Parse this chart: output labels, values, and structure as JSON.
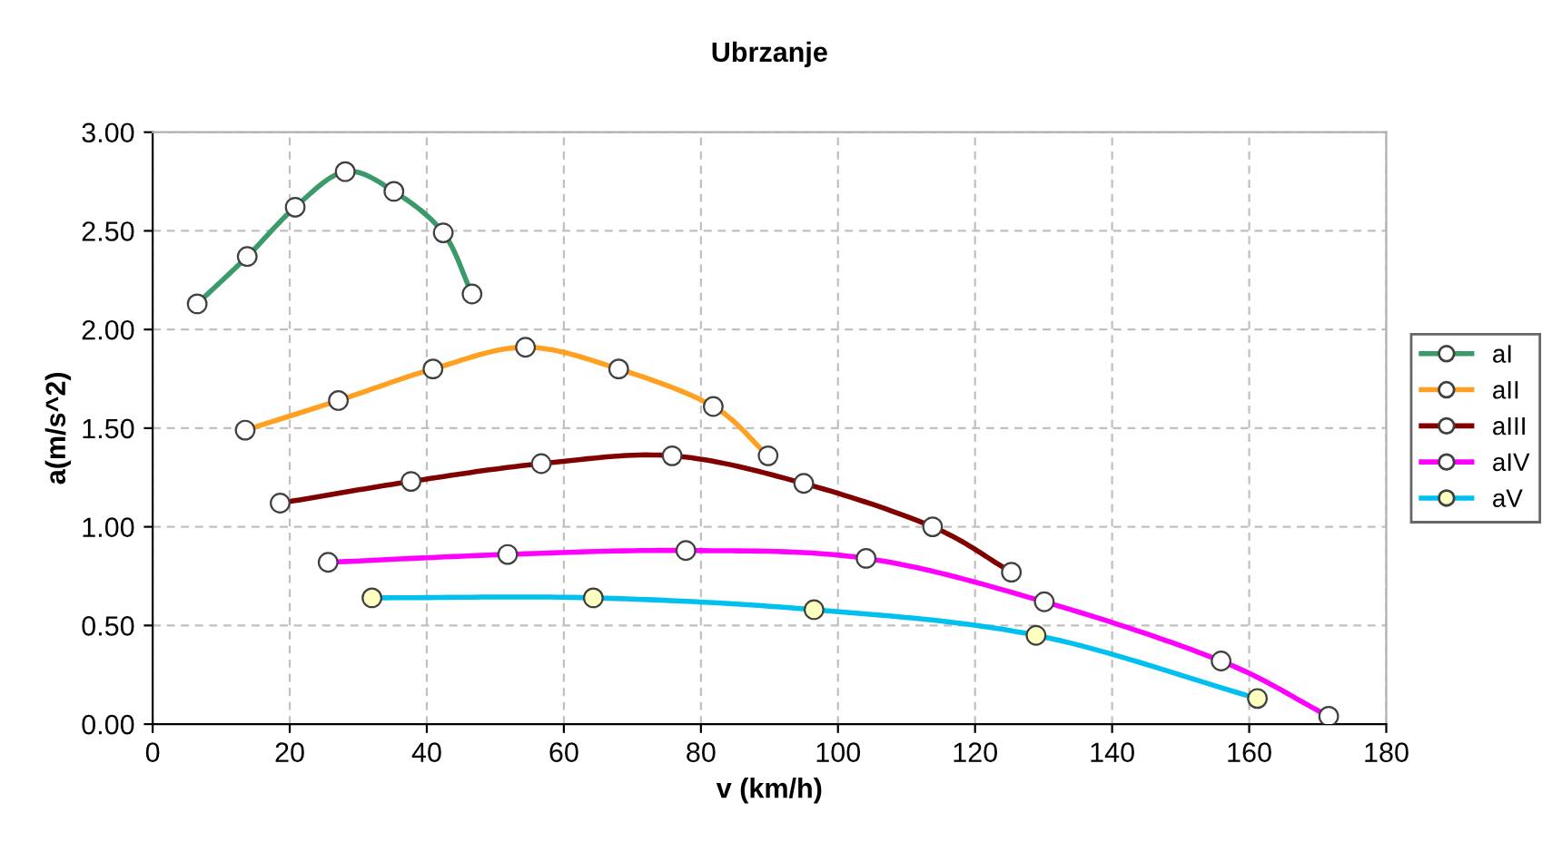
{
  "chart_data": {
    "type": "line",
    "title": "Ubrzanje",
    "xlabel": "v (km/h)",
    "ylabel": "a(m/s^2)",
    "xlim": [
      0,
      180
    ],
    "xticks": [
      0,
      20,
      40,
      60,
      80,
      100,
      120,
      140,
      160,
      180
    ],
    "ylim": [
      0,
      3
    ],
    "yticks": [
      {
        "value": 0,
        "label": "0.00"
      },
      {
        "value": 0.5,
        "label": "0.50"
      },
      {
        "value": 1,
        "label": "1.00"
      },
      {
        "value": 1.5,
        "label": "1.50"
      },
      {
        "value": 2,
        "label": "2.00"
      },
      {
        "value": 2.5,
        "label": "2.50"
      },
      {
        "value": 3,
        "label": "3.00"
      }
    ],
    "grid": true,
    "legend": "right",
    "marker": "circle",
    "line_style": "solid",
    "series": [
      {
        "name": "aI",
        "color": "#3a9a6a",
        "x": [
          6.5,
          13.8,
          20.8,
          28.1,
          35.2,
          42.4,
          46.6
        ],
        "values": [
          2.13,
          2.37,
          2.62,
          2.8,
          2.7,
          2.49,
          2.18
        ]
      },
      {
        "name": "aII",
        "color": "#ffa020",
        "x": [
          13.5,
          27.1,
          40.9,
          54.4,
          68.0,
          81.8,
          89.8
        ],
        "values": [
          1.49,
          1.64,
          1.8,
          1.91,
          1.8,
          1.61,
          1.36
        ]
      },
      {
        "name": "aIII",
        "color": "#800000",
        "x": [
          18.6,
          37.7,
          56.7,
          75.8,
          95.0,
          113.8,
          125.3
        ],
        "values": [
          1.12,
          1.23,
          1.32,
          1.36,
          1.22,
          1.0,
          0.77
        ]
      },
      {
        "name": "aIV",
        "color": "#ff00ff",
        "x": [
          25.6,
          51.8,
          77.8,
          104.1,
          130.1,
          155.9,
          171.6
        ],
        "values": [
          0.82,
          0.86,
          0.88,
          0.84,
          0.62,
          0.32,
          0.04
        ]
      },
      {
        "name": "aV",
        "color": "#00c0f0",
        "x": [
          32.0,
          64.3,
          96.5,
          128.9,
          161.2
        ],
        "values": [
          0.64,
          0.64,
          0.58,
          0.45,
          0.13
        ]
      }
    ]
  }
}
